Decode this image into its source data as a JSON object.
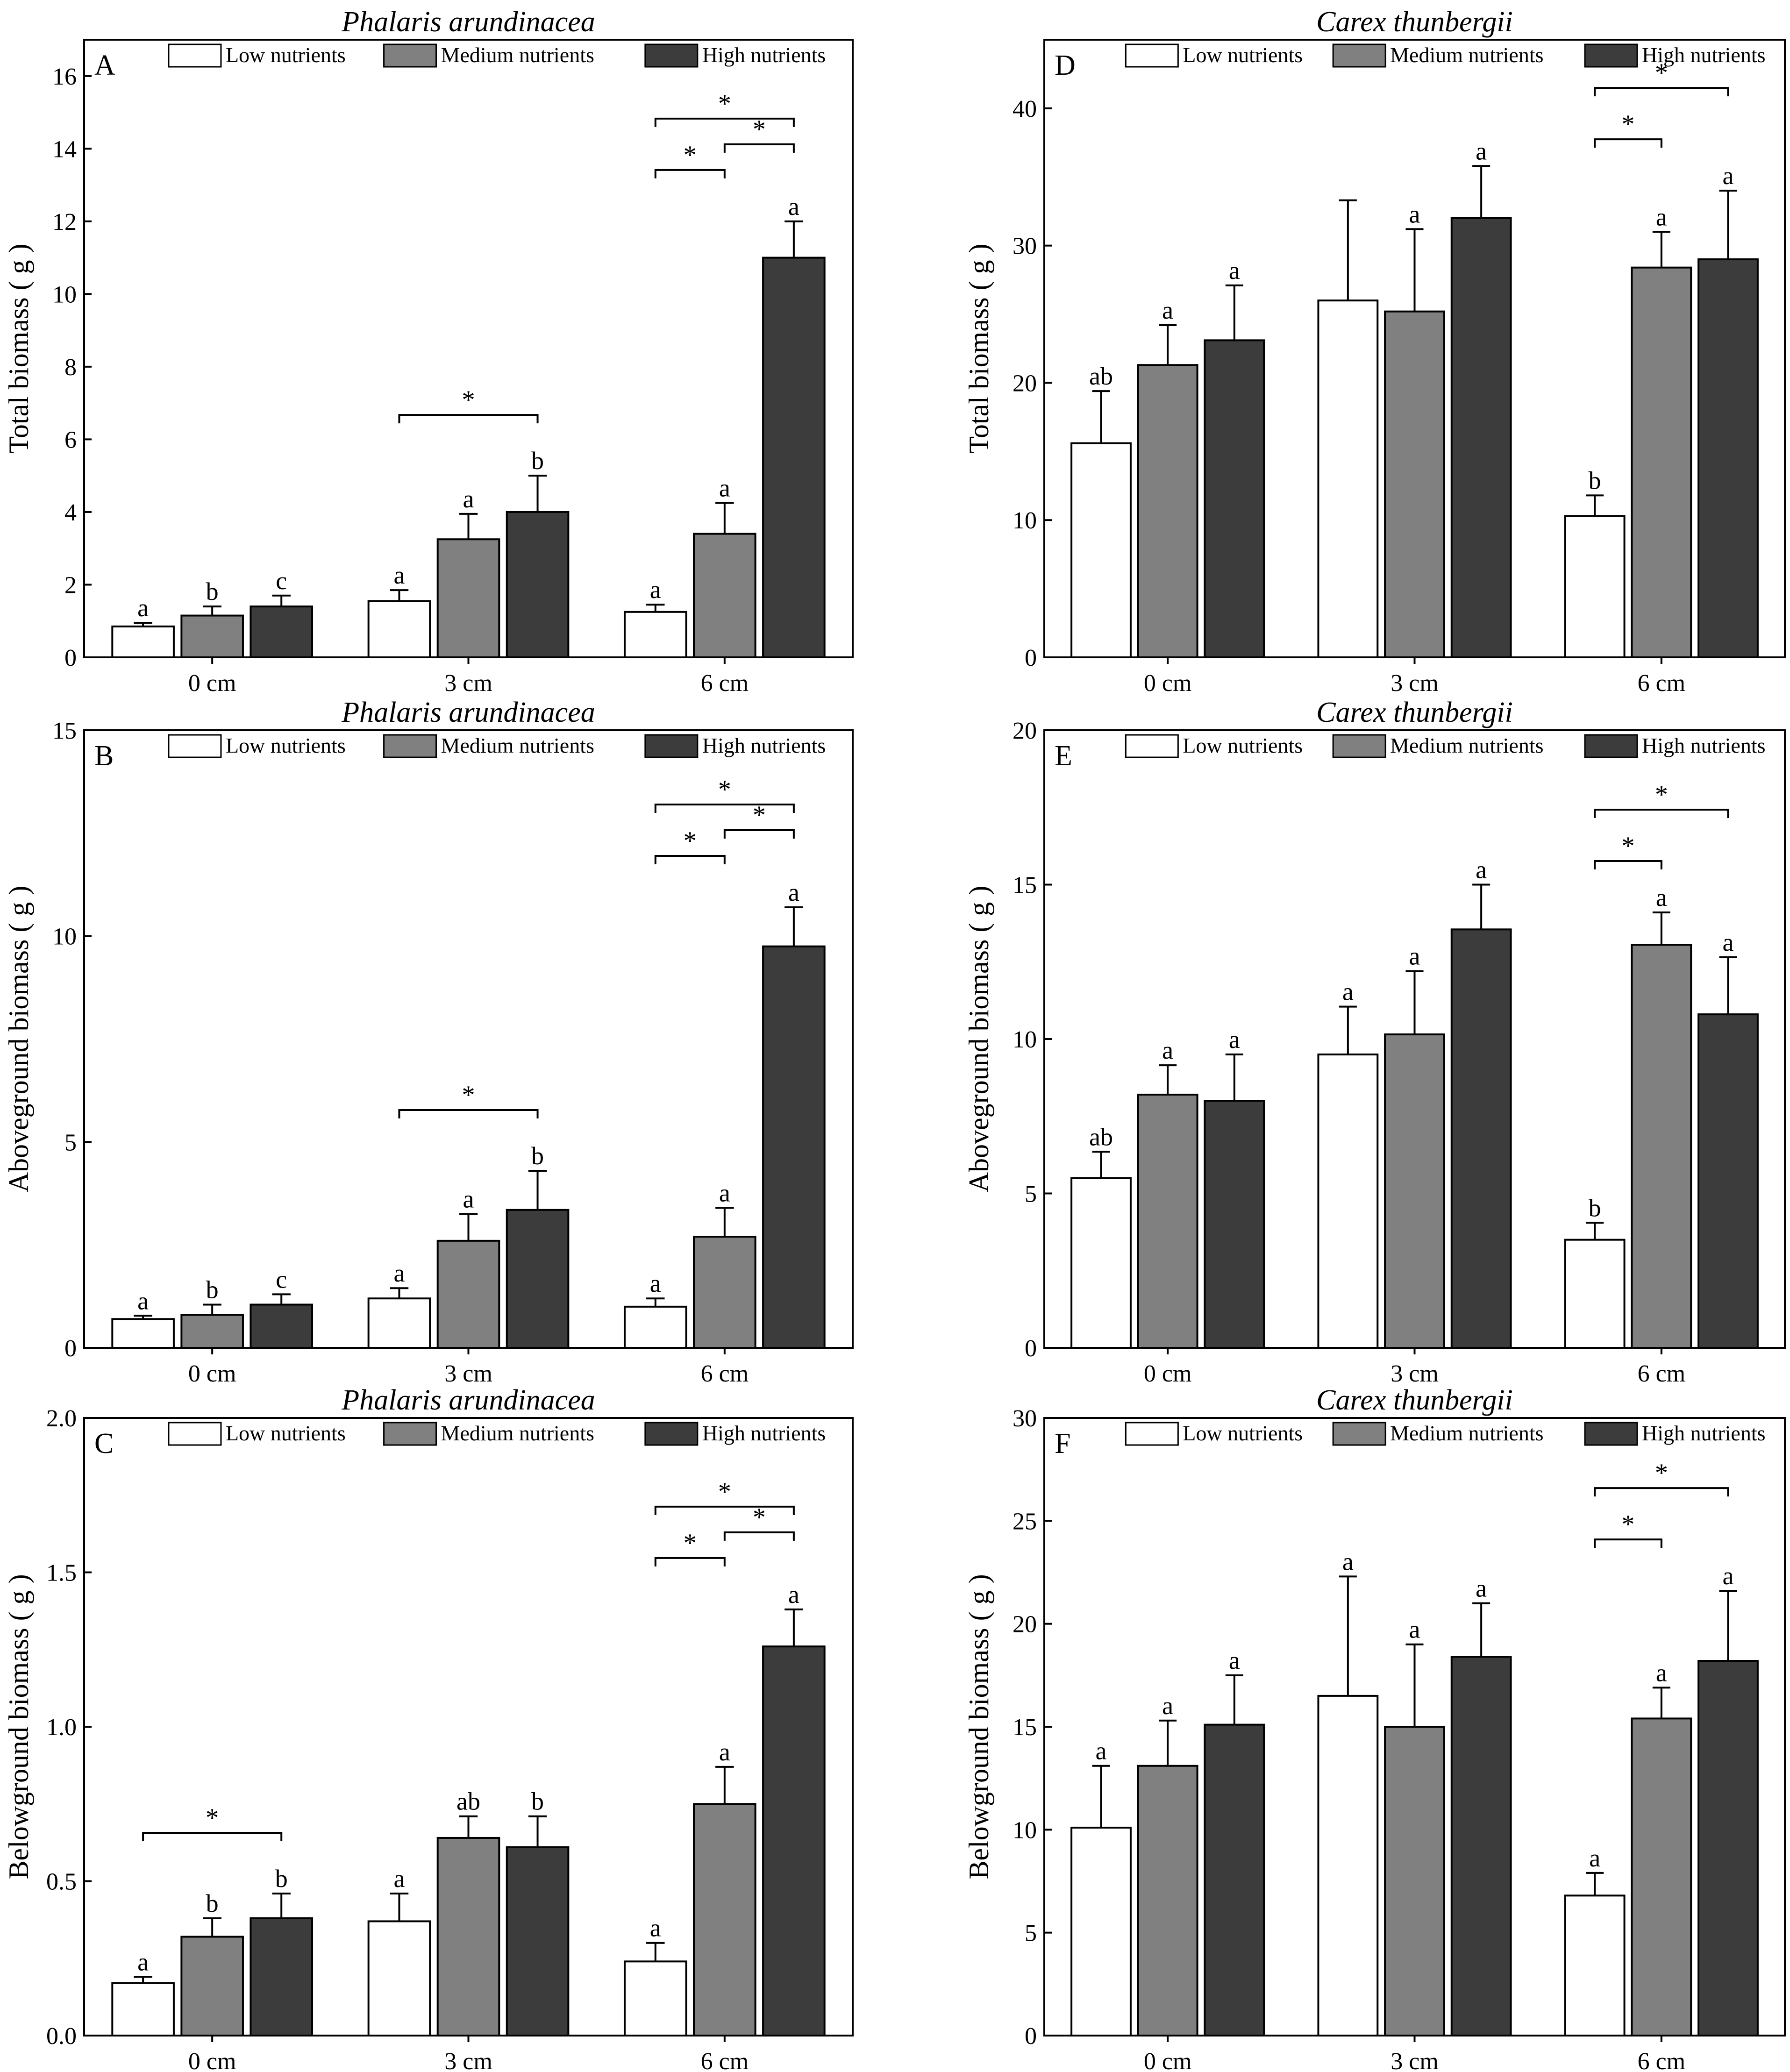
{
  "colors": {
    "low": "#ffffff",
    "medium": "#808080",
    "high": "#3c3c3c",
    "stroke": "#000000"
  },
  "legend": [
    "Low nutrients",
    "Medium nutrients",
    "High nutrients"
  ],
  "chart_data": [
    {
      "id": "A",
      "type": "bar",
      "title": "Phalaris arundinacea",
      "panel_label": "A",
      "ylabel": "Total biomass ( g )",
      "xlabel": "",
      "categories": [
        "0 cm",
        "3 cm",
        "6 cm"
      ],
      "ylim": [
        0,
        17
      ],
      "yticks": [
        0,
        2,
        4,
        6,
        8,
        10,
        12,
        14,
        16
      ],
      "ytick_labels": [
        "0",
        "2",
        "4",
        "6",
        "8",
        "10",
        "12",
        "14",
        "16"
      ],
      "series": [
        {
          "name": "Low nutrients",
          "values": [
            0.85,
            1.55,
            1.25
          ],
          "errors": [
            0.1,
            0.3,
            0.2
          ],
          "letters": [
            "a",
            "a",
            "a"
          ]
        },
        {
          "name": "Medium nutrients",
          "values": [
            1.15,
            3.25,
            3.4
          ],
          "errors": [
            0.25,
            0.7,
            0.85
          ],
          "letters": [
            "b",
            "a",
            "a"
          ]
        },
        {
          "name": "High nutrients",
          "values": [
            1.4,
            4.0,
            11.0
          ],
          "errors": [
            0.3,
            1.0,
            1.0
          ],
          "letters": [
            "c",
            "b",
            "a"
          ]
        }
      ],
      "significance": [
        {
          "cat": 1,
          "from": 0,
          "to": 2,
          "level": 0,
          "label": "*"
        },
        {
          "cat": 2,
          "from": 0,
          "to": 1,
          "level": 0,
          "label": "*"
        },
        {
          "cat": 2,
          "from": 1,
          "to": 2,
          "level": 1,
          "label": "*"
        },
        {
          "cat": 2,
          "from": 0,
          "to": 2,
          "level": 2,
          "label": "*"
        }
      ]
    },
    {
      "id": "B",
      "type": "bar",
      "title": "Phalaris arundinacea",
      "panel_label": "B",
      "ylabel": "Aboveground biomass ( g )",
      "xlabel": "",
      "categories": [
        "0 cm",
        "3 cm",
        "6 cm"
      ],
      "ylim": [
        0,
        15
      ],
      "yticks": [
        0,
        5,
        10,
        15
      ],
      "ytick_labels": [
        "0",
        "5",
        "10",
        "15"
      ],
      "series": [
        {
          "name": "Low nutrients",
          "values": [
            0.7,
            1.2,
            1.0
          ],
          "errors": [
            0.08,
            0.25,
            0.2
          ],
          "letters": [
            "a",
            "a",
            "a"
          ]
        },
        {
          "name": "Medium nutrients",
          "values": [
            0.8,
            2.6,
            2.7
          ],
          "errors": [
            0.25,
            0.65,
            0.7
          ],
          "letters": [
            "b",
            "a",
            "a"
          ]
        },
        {
          "name": "High nutrients",
          "values": [
            1.05,
            3.35,
            9.75
          ],
          "errors": [
            0.25,
            0.95,
            0.95
          ],
          "letters": [
            "c",
            "b",
            "a"
          ]
        }
      ],
      "significance": [
        {
          "cat": 1,
          "from": 0,
          "to": 2,
          "level": 0,
          "label": "*"
        },
        {
          "cat": 2,
          "from": 0,
          "to": 1,
          "level": 0,
          "label": "*"
        },
        {
          "cat": 2,
          "from": 1,
          "to": 2,
          "level": 1,
          "label": "*"
        },
        {
          "cat": 2,
          "from": 0,
          "to": 2,
          "level": 2,
          "label": "*"
        }
      ]
    },
    {
      "id": "C",
      "type": "bar",
      "title": "Phalaris arundinacea",
      "panel_label": "C",
      "ylabel": "Belowground biomass ( g )",
      "xlabel": "",
      "categories": [
        "0 cm",
        "3 cm",
        "6 cm"
      ],
      "ylim": [
        0,
        2.0
      ],
      "yticks": [
        0,
        0.5,
        1.0,
        1.5,
        2.0
      ],
      "ytick_labels": [
        "0.0",
        "0.5",
        "1.0",
        "1.5",
        "2.0"
      ],
      "series": [
        {
          "name": "Low nutrients",
          "values": [
            0.17,
            0.37,
            0.24
          ],
          "errors": [
            0.02,
            0.09,
            0.06
          ],
          "letters": [
            "a",
            "a",
            "a"
          ]
        },
        {
          "name": "Medium nutrients",
          "values": [
            0.32,
            0.64,
            0.75
          ],
          "errors": [
            0.06,
            0.07,
            0.12
          ],
          "letters": [
            "b",
            "ab",
            "a"
          ]
        },
        {
          "name": "High nutrients",
          "values": [
            0.38,
            0.61,
            1.26
          ],
          "errors": [
            0.08,
            0.1,
            0.12
          ],
          "letters": [
            "b",
            "b",
            "a"
          ]
        }
      ],
      "significance": [
        {
          "cat": 0,
          "from": 0,
          "to": 2,
          "level": 0,
          "label": "*"
        },
        {
          "cat": 2,
          "from": 0,
          "to": 1,
          "level": 0,
          "label": "*"
        },
        {
          "cat": 2,
          "from": 1,
          "to": 2,
          "level": 1,
          "label": "*"
        },
        {
          "cat": 2,
          "from": 0,
          "to": 2,
          "level": 2,
          "label": "*"
        }
      ]
    },
    {
      "id": "D",
      "type": "bar",
      "title": "Carex thunbergii",
      "panel_label": "D",
      "ylabel": "Total biomass ( g )",
      "xlabel": "",
      "categories": [
        "0 cm",
        "3 cm",
        "6 cm"
      ],
      "ylim": [
        0,
        45
      ],
      "yticks": [
        0,
        10,
        20,
        30,
        40
      ],
      "ytick_labels": [
        "0",
        "10",
        "20",
        "30",
        "40"
      ],
      "series": [
        {
          "name": "Low nutrients",
          "values": [
            15.6,
            26.0,
            10.3
          ],
          "errors": [
            3.8,
            7.3,
            1.5
          ],
          "letters": [
            "ab",
            "",
            "b"
          ]
        },
        {
          "name": "Medium nutrients",
          "values": [
            21.3,
            25.2,
            28.4
          ],
          "errors": [
            2.9,
            6.0,
            2.6
          ],
          "letters": [
            "a",
            "a",
            "a"
          ]
        },
        {
          "name": "High nutrients",
          "values": [
            23.1,
            32.0,
            29.0
          ],
          "errors": [
            4.0,
            3.8,
            5.0
          ],
          "letters": [
            "a",
            "a",
            "a"
          ]
        }
      ],
      "significance": [
        {
          "cat": 2,
          "from": 0,
          "to": 1,
          "level": 0,
          "label": "*"
        },
        {
          "cat": 2,
          "from": 0,
          "to": 2,
          "level": 2,
          "label": "*"
        }
      ]
    },
    {
      "id": "E",
      "type": "bar",
      "title": "Carex thunbergii",
      "panel_label": "E",
      "ylabel": "Aboveground biomass ( g )",
      "xlabel": "",
      "categories": [
        "0 cm",
        "3 cm",
        "6 cm"
      ],
      "ylim": [
        0,
        20
      ],
      "yticks": [
        0,
        5,
        10,
        15,
        20
      ],
      "ytick_labels": [
        "0",
        "5",
        "10",
        "15",
        "20"
      ],
      "series": [
        {
          "name": "Low nutrients",
          "values": [
            5.5,
            9.5,
            3.5
          ],
          "errors": [
            0.85,
            1.55,
            0.55
          ],
          "letters": [
            "ab",
            "a",
            "b"
          ]
        },
        {
          "name": "Medium nutrients",
          "values": [
            8.2,
            10.15,
            13.05
          ],
          "errors": [
            0.95,
            2.05,
            1.05
          ],
          "letters": [
            "a",
            "a",
            "a"
          ]
        },
        {
          "name": "High nutrients",
          "values": [
            8.0,
            13.55,
            10.8
          ],
          "errors": [
            1.5,
            1.45,
            1.85
          ],
          "letters": [
            "a",
            "a",
            "a"
          ]
        }
      ],
      "significance": [
        {
          "cat": 2,
          "from": 0,
          "to": 1,
          "level": 0,
          "label": "*"
        },
        {
          "cat": 2,
          "from": 0,
          "to": 2,
          "level": 2,
          "label": "*"
        }
      ]
    },
    {
      "id": "F",
      "type": "bar",
      "title": "Carex thunbergii",
      "panel_label": "F",
      "ylabel": "Belowground biomass ( g )",
      "xlabel": "",
      "categories": [
        "0 cm",
        "3 cm",
        "6 cm"
      ],
      "ylim": [
        0,
        30
      ],
      "yticks": [
        0,
        5,
        10,
        15,
        20,
        25,
        30
      ],
      "ytick_labels": [
        "0",
        "5",
        "10",
        "15",
        "20",
        "25",
        "30"
      ],
      "series": [
        {
          "name": "Low nutrients",
          "values": [
            10.1,
            16.5,
            6.8
          ],
          "errors": [
            3.0,
            5.8,
            1.1
          ],
          "letters": [
            "a",
            "a",
            "a"
          ]
        },
        {
          "name": "Medium nutrients",
          "values": [
            13.1,
            15.0,
            15.4
          ],
          "errors": [
            2.2,
            4.0,
            1.5
          ],
          "letters": [
            "a",
            "a",
            "a"
          ]
        },
        {
          "name": "High nutrients",
          "values": [
            15.1,
            18.4,
            18.2
          ],
          "errors": [
            2.4,
            2.6,
            3.4
          ],
          "letters": [
            "a",
            "a",
            "a"
          ]
        }
      ],
      "significance": [
        {
          "cat": 2,
          "from": 0,
          "to": 1,
          "level": 0,
          "label": "*"
        },
        {
          "cat": 2,
          "from": 0,
          "to": 2,
          "level": 2,
          "label": "*"
        }
      ]
    }
  ]
}
